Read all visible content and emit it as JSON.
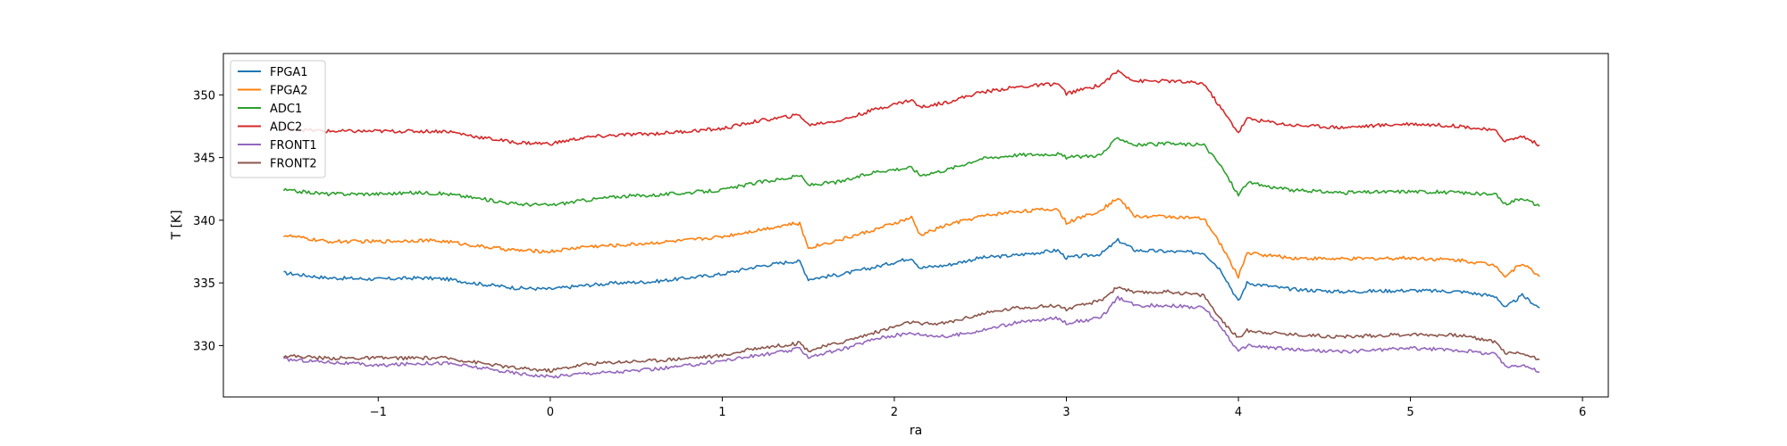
{
  "chart_data": {
    "type": "line",
    "title": "",
    "xlabel": "ra",
    "ylabel": "T [K]",
    "xlim": [
      -1.9,
      6.15
    ],
    "ylim": [
      325.9,
      353.3
    ],
    "xticks": [
      -1,
      0,
      1,
      2,
      3,
      4,
      5,
      6
    ],
    "xtick_labels": [
      "−1",
      "0",
      "1",
      "2",
      "3",
      "4",
      "5",
      "6"
    ],
    "yticks": [
      330,
      335,
      340,
      345,
      350
    ],
    "ytick_labels": [
      "330",
      "335",
      "340",
      "345",
      "350"
    ],
    "grid": false,
    "legend_position": "upper-left",
    "x": [
      -1.55,
      -1.3,
      -1.0,
      -0.75,
      -0.6,
      -0.4,
      -0.2,
      0.0,
      0.2,
      0.4,
      0.6,
      0.8,
      1.0,
      1.2,
      1.4,
      1.45,
      1.5,
      1.7,
      1.9,
      2.1,
      2.15,
      2.3,
      2.5,
      2.7,
      2.95,
      3.0,
      3.2,
      3.3,
      3.4,
      3.6,
      3.8,
      3.9,
      4.0,
      4.05,
      4.3,
      4.6,
      5.0,
      5.3,
      5.5,
      5.55,
      5.65,
      5.75
    ],
    "series": [
      {
        "name": "FPGA1",
        "color": "#1f77b4",
        "values": [
          335.8,
          335.4,
          335.3,
          335.4,
          335.3,
          334.9,
          334.6,
          334.5,
          334.8,
          335.0,
          335.1,
          335.4,
          335.7,
          336.3,
          336.7,
          336.7,
          335.3,
          335.7,
          336.3,
          337.0,
          336.2,
          336.4,
          337.0,
          337.2,
          337.6,
          337.0,
          337.3,
          338.4,
          337.6,
          337.5,
          337.4,
          336.0,
          333.5,
          335.0,
          334.5,
          334.3,
          334.4,
          334.3,
          333.9,
          333.0,
          334.0,
          333.0
        ]
      },
      {
        "name": "FPGA2",
        "color": "#ff7f0e",
        "values": [
          338.8,
          338.3,
          338.3,
          338.4,
          338.3,
          337.9,
          337.6,
          337.5,
          337.9,
          338.0,
          338.2,
          338.4,
          338.7,
          339.2,
          339.7,
          339.7,
          337.8,
          338.5,
          339.3,
          340.2,
          338.8,
          339.6,
          340.3,
          340.7,
          340.9,
          339.8,
          340.8,
          341.8,
          340.3,
          340.3,
          340.1,
          338.0,
          335.5,
          337.4,
          337.0,
          336.9,
          337.0,
          336.8,
          336.4,
          335.5,
          336.6,
          335.5
        ]
      },
      {
        "name": "ADC1",
        "color": "#2ca02c",
        "values": [
          342.4,
          342.1,
          342.1,
          342.2,
          342.1,
          341.7,
          341.3,
          341.2,
          341.6,
          341.9,
          342.0,
          342.2,
          342.4,
          343.0,
          343.4,
          343.6,
          342.8,
          343.1,
          343.9,
          344.2,
          343.6,
          344.0,
          344.9,
          345.2,
          345.3,
          345.0,
          345.2,
          346.6,
          346.0,
          346.1,
          346.0,
          344.3,
          342.0,
          343.0,
          342.4,
          342.2,
          342.3,
          342.2,
          342.0,
          341.3,
          341.8,
          341.1
        ]
      },
      {
        "name": "ADC2",
        "color": "#d62728",
        "values": [
          347.3,
          347.1,
          347.1,
          347.1,
          347.1,
          346.6,
          346.2,
          346.1,
          346.6,
          346.8,
          346.9,
          347.1,
          347.3,
          347.9,
          348.3,
          348.4,
          347.6,
          348.0,
          348.9,
          349.6,
          349.0,
          349.4,
          350.2,
          350.6,
          350.9,
          350.1,
          350.8,
          351.9,
          351.1,
          351.1,
          350.9,
          348.9,
          347.0,
          348.1,
          347.6,
          347.4,
          347.7,
          347.5,
          347.1,
          346.3,
          346.7,
          346.0
        ]
      },
      {
        "name": "FRONT1",
        "color": "#9467bd",
        "values": [
          328.9,
          328.7,
          328.4,
          328.6,
          328.6,
          328.2,
          327.8,
          327.5,
          327.8,
          327.9,
          328.1,
          328.4,
          328.8,
          329.2,
          329.6,
          329.8,
          329.1,
          329.7,
          330.6,
          331.0,
          330.9,
          330.7,
          331.2,
          331.8,
          332.2,
          331.8,
          332.2,
          333.8,
          333.2,
          333.2,
          333.0,
          331.5,
          329.5,
          330.0,
          329.7,
          329.5,
          329.8,
          329.6,
          329.3,
          328.3,
          328.5,
          327.9
        ]
      },
      {
        "name": "FRONT2",
        "color": "#8c564b",
        "values": [
          329.2,
          329.0,
          329.0,
          329.0,
          329.0,
          328.6,
          328.2,
          328.0,
          328.5,
          328.7,
          328.8,
          329.0,
          329.2,
          329.8,
          330.1,
          330.2,
          329.6,
          330.3,
          331.1,
          331.9,
          331.7,
          331.8,
          332.5,
          333.0,
          333.2,
          332.9,
          333.6,
          334.7,
          334.2,
          334.3,
          334.0,
          332.0,
          330.6,
          331.2,
          330.9,
          330.7,
          330.9,
          330.8,
          330.3,
          329.4,
          329.4,
          328.9
        ]
      }
    ]
  }
}
